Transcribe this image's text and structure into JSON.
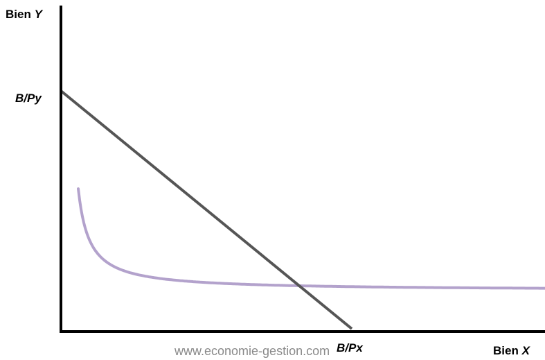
{
  "axes": {
    "y_label_word": "Bien",
    "y_label_var": "Y",
    "x_label_word": "Bien",
    "x_label_var": "X"
  },
  "budget_line": {
    "y_intercept_label": "B/Py",
    "x_intercept_label": "B/Px",
    "color": "#555555"
  },
  "indifference_curve": {
    "color": "#b3a2cc"
  },
  "watermark": "www.economie-gestion.com"
}
